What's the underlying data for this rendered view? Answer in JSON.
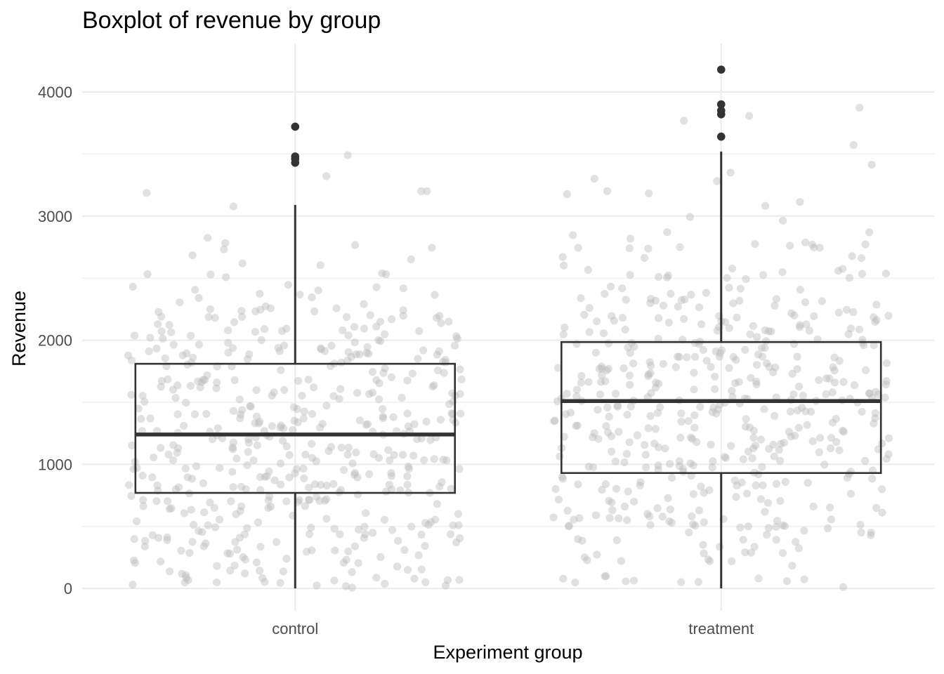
{
  "chart_data": {
    "type": "box",
    "title": "Boxplot of revenue by group",
    "xlabel": "Experiment group",
    "ylabel": "Revenue",
    "ylim": [
      -180,
      4390
    ],
    "y_ticks": [
      0,
      1000,
      2000,
      3000,
      4000
    ],
    "grid": true,
    "categories": [
      "control",
      "treatment"
    ],
    "boxes": [
      {
        "category": "control",
        "lower_whisker": 0,
        "q1": 770,
        "median": 1240,
        "q3": 1810,
        "upper_whisker": 3090,
        "outliers": [
          3430,
          3460,
          3480,
          3720
        ]
      },
      {
        "category": "treatment",
        "lower_whisker": 0,
        "q1": 930,
        "median": 1510,
        "q3": 1985,
        "upper_whisker": 3520,
        "outliers": [
          3640,
          3820,
          3850,
          3900,
          4180
        ]
      }
    ],
    "jitter_points": {
      "description_color": "#bdbdbd",
      "n_per_group": [
        500,
        500
      ]
    },
    "colors": {
      "box_stroke": "#333333",
      "jitter_fill": "#bdbdbd",
      "grid": "#ebebeb",
      "outlier": "#333333"
    }
  }
}
